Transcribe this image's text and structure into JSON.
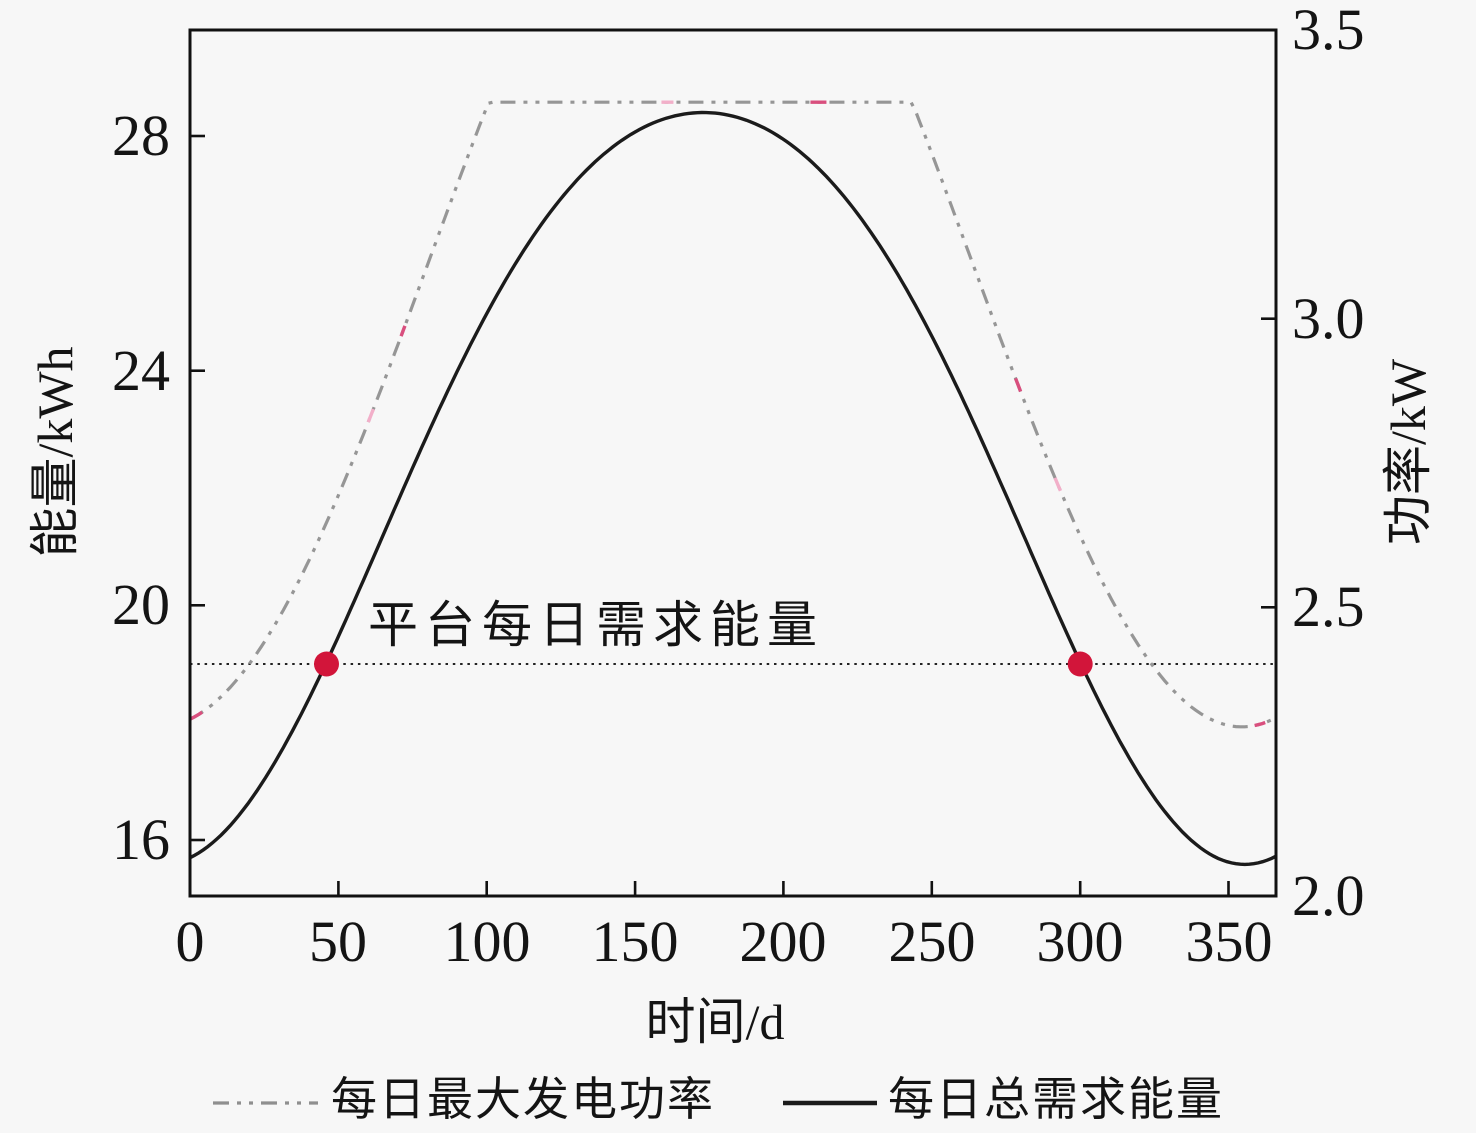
{
  "page": {
    "background": "#f7f7f7"
  },
  "axes": {
    "x": {
      "title": "时间/d",
      "ticks": [
        "0",
        "50",
        "100",
        "150",
        "200",
        "250",
        "300",
        "350"
      ],
      "tick_values": [
        0,
        50,
        100,
        150,
        200,
        250,
        300,
        350
      ],
      "range": [
        0,
        366
      ]
    },
    "left": {
      "title": "能量/kWh",
      "unit": "kWh",
      "ticks": [
        "16",
        "20",
        "24",
        "28"
      ],
      "tick_values": [
        16,
        20,
        24,
        28
      ]
    },
    "right": {
      "title": "功率/kW",
      "unit": "kW",
      "ticks": [
        "2.0",
        "2.5",
        "3.0",
        "3.5"
      ],
      "tick_values": [
        2.0,
        2.5,
        3.0,
        3.5
      ],
      "range": [
        2.0,
        3.5
      ]
    }
  },
  "annotation": {
    "text": "平台每日需求能量",
    "refers_to_value_kWh": 19
  },
  "legend": [
    {
      "label": "每日最大发电功率",
      "style": "dashdot",
      "color": "#8f8f8f"
    },
    {
      "label": "每日总需求能量",
      "style": "solid",
      "color": "#1b1b1b"
    }
  ],
  "colors": {
    "frame": "#111111",
    "solid_curve": "#1b1b1b",
    "dashdot_curve": "#969696",
    "dashdot_accent1": "#d94f7e",
    "dashdot_accent2": "#f2afc9",
    "reference_line": "#222222",
    "intersection_dot": "#d2153a"
  },
  "chart_data": {
    "type": "line",
    "xlabel": "时间/d",
    "ylabel_left": "能量/kWh",
    "ylabel_right": "功率/kW",
    "xlim": [
      0,
      366
    ],
    "ylim_left": [
      15.05,
      29.81
    ],
    "ylim_right": [
      2.0,
      3.5
    ],
    "grid": false,
    "legend_position": "bottom",
    "x": [
      0,
      15,
      30,
      45,
      60,
      75,
      90,
      105,
      120,
      135,
      150,
      165,
      180,
      195,
      210,
      225,
      240,
      255,
      270,
      285,
      300,
      315,
      330,
      345,
      360,
      366
    ],
    "series": [
      {
        "name": "每日最大发电功率",
        "axis": "right",
        "unit": "kW",
        "style": "dashdot",
        "color": "#969696",
        "values": [
          2.3,
          2.38,
          2.48,
          2.64,
          2.82,
          3.02,
          3.23,
          3.375,
          3.375,
          3.375,
          3.375,
          3.375,
          3.375,
          3.375,
          3.375,
          3.375,
          3.375,
          3.22,
          3.01,
          2.81,
          2.62,
          2.47,
          2.36,
          2.3,
          2.3,
          2.31
        ]
      },
      {
        "name": "每日总需求能量",
        "axis": "left",
        "unit": "kWh",
        "style": "solid",
        "color": "#1b1b1b",
        "values": [
          15.7,
          16.33,
          17.45,
          18.92,
          20.61,
          22.34,
          23.98,
          25.43,
          26.6,
          27.49,
          28.07,
          28.36,
          28.37,
          28.1,
          27.53,
          26.68,
          25.51,
          24.09,
          22.45,
          20.72,
          19.03,
          17.3,
          16.39,
          15.72,
          15.61,
          15.72
        ]
      }
    ],
    "reference_line": {
      "label": "平台每日需求能量",
      "axis": "left",
      "value": 19,
      "style": "dotted"
    },
    "intersection_points": [
      {
        "t": 46,
        "value": 19
      },
      {
        "t": 300,
        "value": 19
      }
    ],
    "models": {
      "demand_energy": {
        "type": "two_harmonic_cosine",
        "a0": 22.545,
        "a1": 6.408,
        "a2": -0.553,
        "t0": 173,
        "period": 365
      },
      "max_generation_power": {
        "type": "clipped_cosine",
        "b0": 3.103,
        "b1": 0.81,
        "t0": 172,
        "period": 365,
        "clip_max": 3.375
      }
    }
  }
}
